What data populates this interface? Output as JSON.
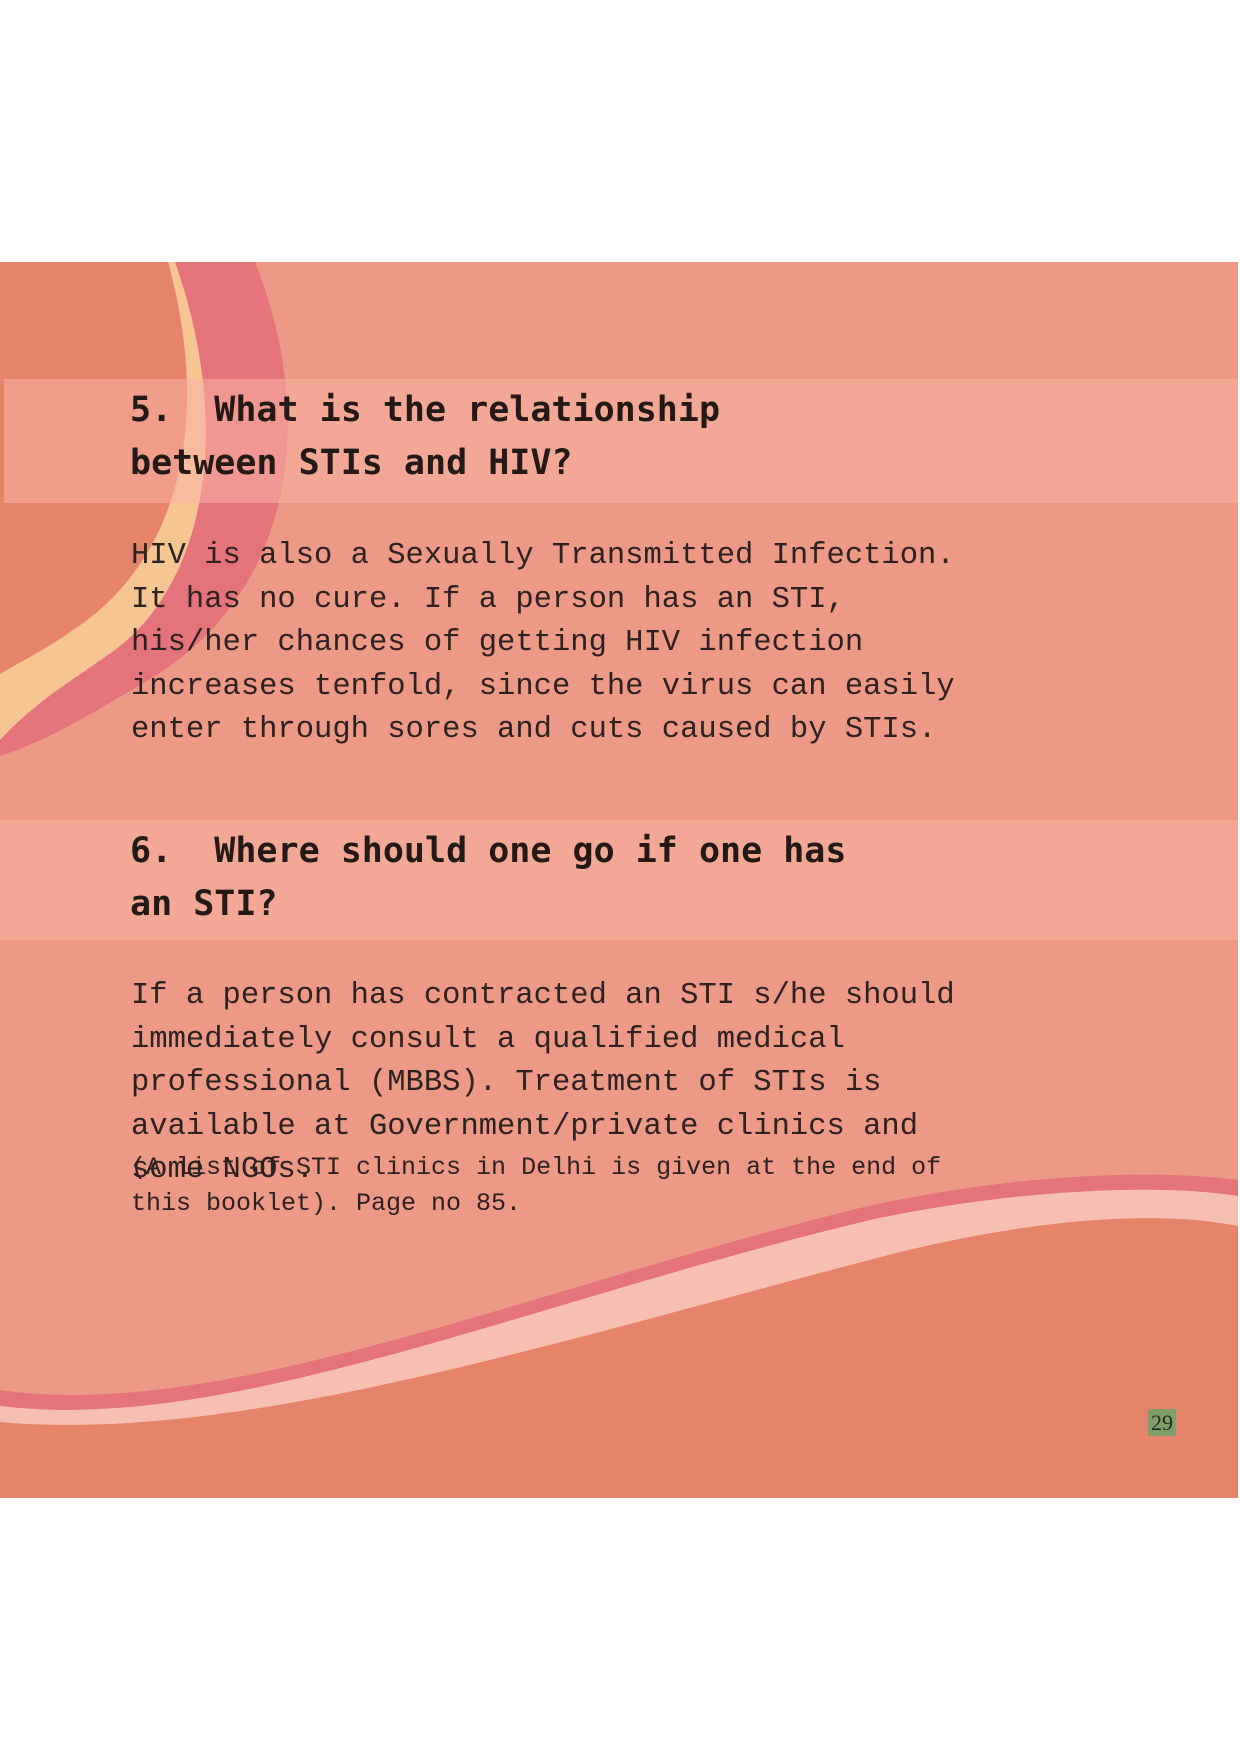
{
  "sections": [
    {
      "heading": "5.  What is the relationship\nbetween STIs and HIV?",
      "body": "HIV is also a Sexually Transmitted Infection. It has no cure. If a person has an STI, his/her chances of getting HIV infection increases tenfold, since the virus can easily enter through sores and cuts caused by STIs."
    },
    {
      "heading": "6.  Where should one go if one has\nan STI?",
      "body": "If a person has contracted an STI s/he should immediately consult a qualified medical professional (MBBS). Treatment of STIs is available at Government/private clinics and some NGOs.",
      "note": "(A list of STI clinics in Delhi is given at the end of this booklet). Page no 85."
    }
  ],
  "page_number": "29",
  "colors": {
    "panel": "#ec9985",
    "heading_band": "#f4aa97",
    "arc_dark": "#e6836b",
    "arc_cream": "#f5c592",
    "arc_pink": "#e4747a",
    "wave_light": "#f6c0b0",
    "page_number_bg": "#7f9f66"
  }
}
